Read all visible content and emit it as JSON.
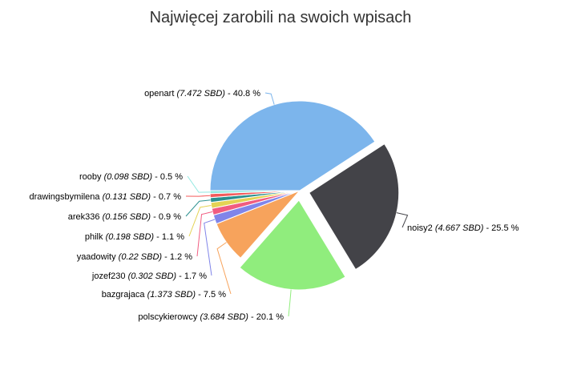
{
  "chart_data": {
    "type": "pie",
    "title": "Najwięcej zarobili na swoich wpisach",
    "unit": "SBD",
    "slices": [
      {
        "name": "openart",
        "value": 7.472,
        "percent": "40.8",
        "color": "#7cb5ec",
        "exploded": false
      },
      {
        "name": "noisy2",
        "value": 4.667,
        "percent": "25.5",
        "color": "#434348",
        "exploded": true
      },
      {
        "name": "polscykierowcy",
        "value": 3.684,
        "percent": "20.1",
        "color": "#90ed7d",
        "exploded": true
      },
      {
        "name": "bazgrajaca",
        "value": 1.373,
        "percent": "7.5",
        "color": "#f7a35c",
        "exploded": false
      },
      {
        "name": "jozef230",
        "value": 0.302,
        "percent": "1.7",
        "color": "#8085e9",
        "exploded": false
      },
      {
        "name": "yaadowity",
        "value": 0.22,
        "percent": "1.2",
        "color": "#f15c80",
        "exploded": false
      },
      {
        "name": "philk",
        "value": 0.198,
        "percent": "1.1",
        "color": "#e4d354",
        "exploded": false
      },
      {
        "name": "arek336",
        "value": 0.156,
        "percent": "0.9",
        "color": "#2b908f",
        "exploded": false
      },
      {
        "name": "drawingsbymilena",
        "value": 0.131,
        "percent": "0.7",
        "color": "#f45b5b",
        "exploded": false
      },
      {
        "name": "rooby",
        "value": 0.098,
        "percent": "0.5",
        "color": "#91e8e1",
        "exploded": false
      }
    ]
  }
}
